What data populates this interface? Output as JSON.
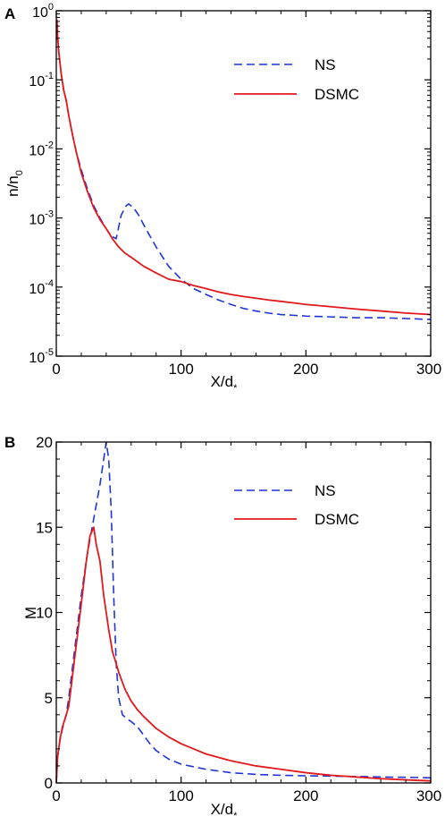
{
  "chart_data": [
    {
      "panel_label": "A",
      "type": "line",
      "xlabel_main": "X/d",
      "xlabel_sub": "*",
      "ylabel_main": "n/n",
      "ylabel_sub": "0",
      "xlim": [
        0,
        300
      ],
      "ylim": [
        1e-05,
        1
      ],
      "y_scale": "log",
      "x_ticks": [
        0,
        100,
        200,
        300
      ],
      "x_tick_labels": [
        "0",
        "100",
        "200",
        "300"
      ],
      "y_ticks": [
        1e-05,
        0.0001,
        0.001,
        0.01,
        0.1,
        1
      ],
      "y_tick_labels": [
        {
          "base": "10",
          "exp": "-5"
        },
        {
          "base": "10",
          "exp": "-4"
        },
        {
          "base": "10",
          "exp": "-3"
        },
        {
          "base": "10",
          "exp": "-2"
        },
        {
          "base": "10",
          "exp": "-1"
        },
        {
          "base": "10",
          "exp": "0"
        }
      ],
      "grid": false,
      "legend_position": "top-right",
      "series": [
        {
          "name": "NS",
          "color": "#1f35d8",
          "dash": "dashed",
          "x": [
            0.5,
            1,
            2,
            4,
            6,
            8,
            10,
            13,
            16,
            20,
            25,
            30,
            35,
            40,
            44,
            48,
            52,
            56,
            58,
            62,
            66,
            70,
            75,
            80,
            90,
            100,
            110,
            120,
            130,
            140,
            150,
            160,
            170,
            180,
            190,
            200,
            220,
            240,
            260,
            280,
            300
          ],
          "y": [
            0.7,
            0.4,
            0.25,
            0.12,
            0.07,
            0.05,
            0.03,
            0.016,
            0.009,
            0.005,
            0.0026,
            0.0015,
            0.001,
            0.0007,
            0.00055,
            0.0005,
            0.0011,
            0.0015,
            0.0016,
            0.0014,
            0.0011,
            0.0008,
            0.00055,
            0.00038,
            0.0002,
            0.00013,
            9.5e-05,
            7.8e-05,
            6.5e-05,
            5.6e-05,
            4.9e-05,
            4.5e-05,
            4.2e-05,
            4e-05,
            3.9e-05,
            3.8e-05,
            3.7e-05,
            3.6e-05,
            3.6e-05,
            3.5e-05,
            3.4e-05
          ]
        },
        {
          "name": "DSMC",
          "color": "#e3181b",
          "dash": "solid",
          "x": [
            0.5,
            1,
            2,
            4,
            6,
            8,
            10,
            13,
            16,
            20,
            25,
            30,
            35,
            40,
            45,
            50,
            55,
            60,
            70,
            80,
            90,
            100,
            110,
            120,
            130,
            140,
            150,
            160,
            170,
            180,
            190,
            200,
            220,
            240,
            260,
            280,
            300
          ],
          "y": [
            0.75,
            0.45,
            0.25,
            0.12,
            0.07,
            0.05,
            0.03,
            0.016,
            0.009,
            0.0045,
            0.0024,
            0.0014,
            0.00095,
            0.0007,
            0.0005,
            0.00038,
            0.00031,
            0.00027,
            0.0002,
            0.00016,
            0.00013,
            0.00012,
            0.000105,
            9.5e-05,
            8.5e-05,
            7.8e-05,
            7.3e-05,
            6.9e-05,
            6.5e-05,
            6.2e-05,
            5.9e-05,
            5.6e-05,
            5.2e-05,
            4.8e-05,
            4.5e-05,
            4.2e-05,
            4e-05
          ]
        }
      ]
    },
    {
      "panel_label": "B",
      "type": "line",
      "xlabel_main": "X/d",
      "xlabel_sub": "*",
      "ylabel_main": "M",
      "ylabel_sub": "",
      "xlim": [
        0,
        300
      ],
      "ylim": [
        0,
        20
      ],
      "y_scale": "linear",
      "x_ticks": [
        0,
        100,
        200,
        300
      ],
      "x_tick_labels": [
        "0",
        "100",
        "200",
        "300"
      ],
      "y_ticks": [
        0,
        5,
        10,
        15,
        20
      ],
      "y_tick_labels": [
        "0",
        "5",
        "10",
        "15",
        "20"
      ],
      "grid": false,
      "legend_position": "top-right",
      "series": [
        {
          "name": "NS",
          "color": "#1f35d8",
          "dash": "dashed",
          "x": [
            0,
            1,
            3,
            5,
            8,
            10,
            15,
            20,
            25,
            30,
            35,
            38,
            40,
            42,
            44,
            46,
            48,
            50,
            53,
            56,
            60,
            65,
            70,
            75,
            80,
            90,
            100,
            120,
            140,
            160,
            180,
            200,
            220,
            240,
            260,
            280,
            300
          ],
          "y": [
            0,
            1.5,
            2.5,
            3.2,
            4,
            5,
            8,
            11,
            13.5,
            15.5,
            17.5,
            19,
            20,
            19,
            16,
            11,
            7,
            5,
            4,
            3.8,
            3.6,
            3.3,
            2.8,
            2.3,
            1.9,
            1.4,
            1.1,
            0.8,
            0.6,
            0.5,
            0.45,
            0.42,
            0.4,
            0.38,
            0.35,
            0.33,
            0.3
          ]
        },
        {
          "name": "DSMC",
          "color": "#e3181b",
          "dash": "solid",
          "x": [
            0,
            1,
            3,
            5,
            8,
            10,
            15,
            20,
            24,
            27,
            30,
            32,
            35,
            38,
            40,
            42,
            45,
            48,
            50,
            55,
            60,
            65,
            70,
            80,
            90,
            100,
            110,
            120,
            140,
            160,
            180,
            200,
            220,
            240,
            260,
            280,
            300
          ],
          "y": [
            0,
            1.5,
            2.6,
            3.3,
            4,
            4.5,
            7.5,
            10.5,
            13,
            14.5,
            15,
            14,
            13,
            11,
            10,
            9,
            7.7,
            7,
            6.5,
            5.5,
            4.8,
            4.3,
            3.9,
            3.2,
            2.7,
            2.3,
            2.0,
            1.7,
            1.3,
            1.0,
            0.8,
            0.6,
            0.45,
            0.35,
            0.25,
            0.18,
            0.12
          ]
        }
      ]
    }
  ]
}
